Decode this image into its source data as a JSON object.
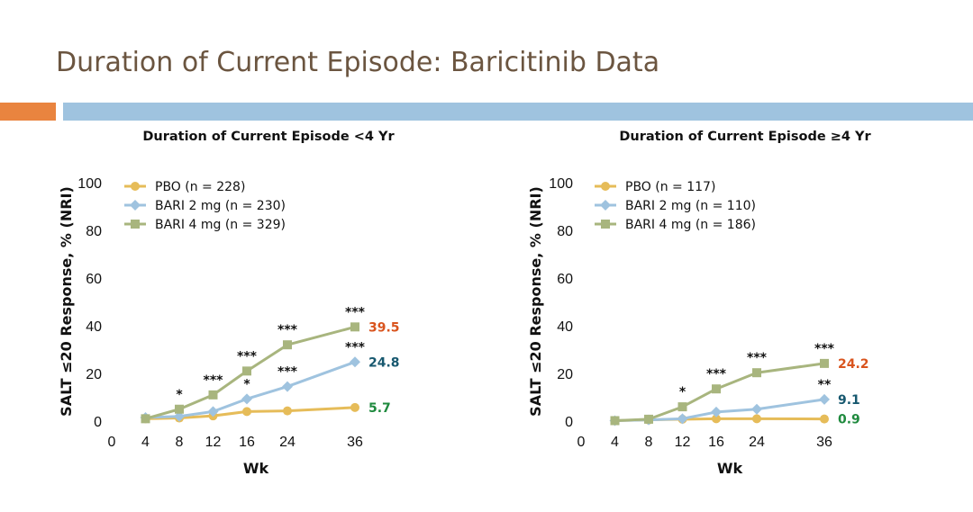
{
  "slide": {
    "title": "Duration of Current Episode: Baricitinib Data",
    "accent_colors": {
      "left": "#e9843f",
      "right": "#9fc3df"
    }
  },
  "chart_data": [
    {
      "type": "line",
      "title": "Duration of Current Episode <4 Yr",
      "xlabel": "Wk",
      "ylabel": "SALT ≤20 Response, % (NRI)",
      "x_ticks": [
        "0",
        "4",
        "8",
        "12",
        "16",
        "24",
        "36"
      ],
      "y_ticks": [
        "0",
        "20",
        "40",
        "60",
        "80",
        "100"
      ],
      "ylim": [
        0,
        100
      ],
      "x": [
        4,
        8,
        12,
        16,
        24,
        36
      ],
      "series": [
        {
          "name": "PBO (n = 228)",
          "color": "#e6bc59",
          "marker": "circle",
          "values": [
            1.0,
            1.3,
            2.2,
            4.0,
            4.3,
            5.7
          ],
          "end_label": "5.7",
          "end_label_color": "#1f8a3e"
        },
        {
          "name": "BARI 2 mg (n = 230)",
          "color": "#9fc3df",
          "marker": "diamond",
          "values": [
            1.5,
            2.0,
            4.0,
            9.3,
            14.5,
            24.8
          ],
          "end_label": "24.8",
          "end_label_color": "#17586f"
        },
        {
          "name": "BARI 4 mg (n = 329)",
          "color": "#a8b57e",
          "marker": "square",
          "values": [
            1.0,
            5.0,
            11.0,
            21.0,
            32.0,
            39.5
          ],
          "end_label": "39.5",
          "end_label_color": "#d9541e"
        }
      ],
      "annotations": [
        {
          "x": 8,
          "y": 5.0,
          "text": "*"
        },
        {
          "x": 12,
          "y": 11.0,
          "text": "***"
        },
        {
          "x": 16,
          "y": 21.0,
          "text": "***"
        },
        {
          "x": 16,
          "y": 9.3,
          "text": "*"
        },
        {
          "x": 24,
          "y": 32.0,
          "text": "***"
        },
        {
          "x": 24,
          "y": 14.5,
          "text": "***"
        },
        {
          "x": 36,
          "y": 39.5,
          "text": "***"
        },
        {
          "x": 36,
          "y": 24.8,
          "text": "***"
        }
      ]
    },
    {
      "type": "line",
      "title": "Duration of Current Episode ≥4 Yr",
      "xlabel": "Wk",
      "ylabel": "SALT ≤20 Response, % (NRI)",
      "x_ticks": [
        "0",
        "4",
        "8",
        "12",
        "16",
        "24",
        "36"
      ],
      "y_ticks": [
        "0",
        "20",
        "40",
        "60",
        "80",
        "100"
      ],
      "ylim": [
        0,
        100
      ],
      "x": [
        4,
        8,
        12,
        16,
        24,
        36
      ],
      "series": [
        {
          "name": "PBO (n = 117)",
          "color": "#e6bc59",
          "marker": "circle",
          "values": [
            0.2,
            0.5,
            0.8,
            1.0,
            1.0,
            0.9
          ],
          "end_label": "0.9",
          "end_label_color": "#1f8a3e"
        },
        {
          "name": "BARI 2 mg (n = 110)",
          "color": "#9fc3df",
          "marker": "diamond",
          "values": [
            0.2,
            0.5,
            1.0,
            3.8,
            5.0,
            9.1
          ],
          "end_label": "9.1",
          "end_label_color": "#17586f"
        },
        {
          "name": "BARI 4 mg (n = 186)",
          "color": "#a8b57e",
          "marker": "square",
          "values": [
            0.2,
            0.8,
            6.0,
            13.5,
            20.3,
            24.2
          ],
          "end_label": "24.2",
          "end_label_color": "#d9541e"
        }
      ],
      "annotations": [
        {
          "x": 12,
          "y": 6.0,
          "text": "*"
        },
        {
          "x": 16,
          "y": 13.5,
          "text": "***"
        },
        {
          "x": 24,
          "y": 20.3,
          "text": "***"
        },
        {
          "x": 36,
          "y": 24.2,
          "text": "***"
        },
        {
          "x": 36,
          "y": 9.1,
          "text": "**"
        }
      ]
    }
  ]
}
